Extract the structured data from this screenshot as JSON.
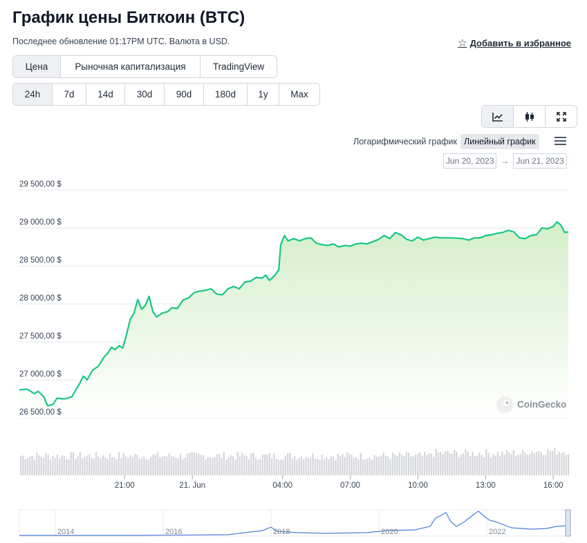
{
  "header": {
    "title": "График цены Биткоин (BTC)",
    "subtitle": "Последнее обновление 01:17PM UTC. Валюта в USD.",
    "favorite_label": "Добавить в избранное"
  },
  "tabs": [
    {
      "label": "Цена",
      "active": true
    },
    {
      "label": "Рыночная капитализация",
      "active": false
    },
    {
      "label": "TradingView",
      "active": false
    }
  ],
  "ranges": [
    {
      "label": "24h",
      "active": true
    },
    {
      "label": "7d",
      "active": false
    },
    {
      "label": "14d",
      "active": false
    },
    {
      "label": "30d",
      "active": false
    },
    {
      "label": "90d",
      "active": false
    },
    {
      "label": "180d",
      "active": false
    },
    {
      "label": "1y",
      "active": false
    },
    {
      "label": "Max",
      "active": false
    }
  ],
  "chart_type_icons": [
    "line-chart-icon",
    "candlestick-icon",
    "fullscreen-icon"
  ],
  "scale": {
    "log_label": "Логарифмический график",
    "linear_label": "Линейный график",
    "active": "linear"
  },
  "date_range": {
    "from": "Jun 20, 2023",
    "arrow": "→",
    "to": "Jun 21, 2023"
  },
  "watermark": "CoinGecko",
  "colors": {
    "line": "#16c784",
    "fill_top": "#d4eec9",
    "volume": "#d4d6da",
    "nav_line": "#4a7fd6"
  },
  "chart_data": {
    "type": "area",
    "ylim": [
      26500,
      29500
    ],
    "y_ticks": [
      {
        "value": 29500,
        "label": "29 500,00 $"
      },
      {
        "value": 29000,
        "label": "29 000,00 $"
      },
      {
        "value": 28500,
        "label": "28 500,00 $"
      },
      {
        "value": 28000,
        "label": "28 000,00 $"
      },
      {
        "value": 27500,
        "label": "27 500,00 $"
      },
      {
        "value": 27000,
        "label": "27 000,00 $"
      },
      {
        "value": 26500,
        "label": "26 500,00 $"
      }
    ],
    "x_range": [
      "Jun 20, 2023 16:20",
      "Jun 21, 2023 16:40"
    ],
    "x_ticks": [
      {
        "time": "Jun 20, 2023 21:00",
        "label": "21:00"
      },
      {
        "time": "Jun 21, 2023 00:00",
        "label": "21. Jun"
      },
      {
        "time": "Jun 21, 2023 04:00",
        "label": "04:00"
      },
      {
        "time": "Jun 21, 2023 07:00",
        "label": "07:00"
      },
      {
        "time": "Jun 21, 2023 10:00",
        "label": "10:00"
      },
      {
        "time": "Jun 21, 2023 13:00",
        "label": "13:00"
      },
      {
        "time": "Jun 21, 2023 16:00",
        "label": "16:00"
      }
    ],
    "series": [
      {
        "points": [
          [
            "Jun 20, 2023 16:20",
            26870
          ],
          [
            "Jun 20, 2023 16:40",
            26880
          ],
          [
            "Jun 20, 2023 17:00",
            26820
          ],
          [
            "Jun 20, 2023 17:10",
            26850
          ],
          [
            "Jun 20, 2023 17:25",
            26780
          ],
          [
            "Jun 20, 2023 17:35",
            26660
          ],
          [
            "Jun 20, 2023 17:50",
            26680
          ],
          [
            "Jun 20, 2023 18:00",
            26760
          ],
          [
            "Jun 20, 2023 18:20",
            26750
          ],
          [
            "Jun 20, 2023 18:40",
            26780
          ],
          [
            "Jun 20, 2023 19:00",
            26950
          ],
          [
            "Jun 20, 2023 19:10",
            27050
          ],
          [
            "Jun 20, 2023 19:20",
            27000
          ],
          [
            "Jun 20, 2023 19:35",
            27130
          ],
          [
            "Jun 20, 2023 19:50",
            27180
          ],
          [
            "Jun 20, 2023 20:05",
            27300
          ],
          [
            "Jun 20, 2023 20:15",
            27350
          ],
          [
            "Jun 20, 2023 20:25",
            27430
          ],
          [
            "Jun 20, 2023 20:35",
            27400
          ],
          [
            "Jun 20, 2023 20:45",
            27450
          ],
          [
            "Jun 20, 2023 20:55",
            27420
          ],
          [
            "Jun 20, 2023 21:05",
            27600
          ],
          [
            "Jun 20, 2023 21:15",
            27800
          ],
          [
            "Jun 20, 2023 21:25",
            27880
          ],
          [
            "Jun 20, 2023 21:35",
            28060
          ],
          [
            "Jun 20, 2023 21:45",
            27930
          ],
          [
            "Jun 20, 2023 21:55",
            27980
          ],
          [
            "Jun 20, 2023 22:05",
            28100
          ],
          [
            "Jun 20, 2023 22:15",
            27900
          ],
          [
            "Jun 20, 2023 22:25",
            27830
          ],
          [
            "Jun 20, 2023 22:40",
            27880
          ],
          [
            "Jun 20, 2023 22:55",
            27900
          ],
          [
            "Jun 20, 2023 23:05",
            27950
          ],
          [
            "Jun 20, 2023 23:20",
            27940
          ],
          [
            "Jun 20, 2023 23:35",
            28050
          ],
          [
            "Jun 20, 2023 23:50",
            28080
          ],
          [
            "Jun 21, 2023 00:05",
            28150
          ],
          [
            "Jun 21, 2023 00:20",
            28170
          ],
          [
            "Jun 21, 2023 00:35",
            28180
          ],
          [
            "Jun 21, 2023 00:50",
            28200
          ],
          [
            "Jun 21, 2023 01:05",
            28130
          ],
          [
            "Jun 21, 2023 01:20",
            28120
          ],
          [
            "Jun 21, 2023 01:35",
            28200
          ],
          [
            "Jun 21, 2023 01:50",
            28230
          ],
          [
            "Jun 21, 2023 02:05",
            28200
          ],
          [
            "Jun 21, 2023 02:20",
            28290
          ],
          [
            "Jun 21, 2023 02:35",
            28300
          ],
          [
            "Jun 21, 2023 02:50",
            28350
          ],
          [
            "Jun 21, 2023 03:05",
            28340
          ],
          [
            "Jun 21, 2023 03:15",
            28380
          ],
          [
            "Jun 21, 2023 03:25",
            28310
          ],
          [
            "Jun 21, 2023 03:40",
            28380
          ],
          [
            "Jun 21, 2023 03:50",
            28450
          ],
          [
            "Jun 21, 2023 03:55",
            28780
          ],
          [
            "Jun 21, 2023 04:05",
            28900
          ],
          [
            "Jun 21, 2023 04:15",
            28830
          ],
          [
            "Jun 21, 2023 04:30",
            28860
          ],
          [
            "Jun 21, 2023 04:45",
            28830
          ],
          [
            "Jun 21, 2023 05:00",
            28860
          ],
          [
            "Jun 21, 2023 05:15",
            28870
          ],
          [
            "Jun 21, 2023 05:30",
            28800
          ],
          [
            "Jun 21, 2023 05:45",
            28780
          ],
          [
            "Jun 21, 2023 06:00",
            28770
          ],
          [
            "Jun 21, 2023 06:15",
            28790
          ],
          [
            "Jun 21, 2023 06:30",
            28750
          ],
          [
            "Jun 21, 2023 06:45",
            28770
          ],
          [
            "Jun 21, 2023 07:00",
            28760
          ],
          [
            "Jun 21, 2023 07:15",
            28790
          ],
          [
            "Jun 21, 2023 07:30",
            28800
          ],
          [
            "Jun 21, 2023 07:45",
            28790
          ],
          [
            "Jun 21, 2023 08:00",
            28820
          ],
          [
            "Jun 21, 2023 08:15",
            28850
          ],
          [
            "Jun 21, 2023 08:30",
            28900
          ],
          [
            "Jun 21, 2023 08:45",
            28860
          ],
          [
            "Jun 21, 2023 09:00",
            28940
          ],
          [
            "Jun 21, 2023 09:15",
            28910
          ],
          [
            "Jun 21, 2023 09:30",
            28850
          ],
          [
            "Jun 21, 2023 09:45",
            28830
          ],
          [
            "Jun 21, 2023 10:00",
            28880
          ],
          [
            "Jun 21, 2023 10:15",
            28840
          ],
          [
            "Jun 21, 2023 10:30",
            28860
          ],
          [
            "Jun 21, 2023 10:45",
            28880
          ],
          [
            "Jun 21, 2023 11:00",
            28870
          ],
          [
            "Jun 21, 2023 11:30",
            28870
          ],
          [
            "Jun 21, 2023 12:00",
            28860
          ],
          [
            "Jun 21, 2023 12:15",
            28840
          ],
          [
            "Jun 21, 2023 12:30",
            28870
          ],
          [
            "Jun 21, 2023 12:45",
            28870
          ],
          [
            "Jun 21, 2023 13:00",
            28900
          ],
          [
            "Jun 21, 2023 13:15",
            28910
          ],
          [
            "Jun 21, 2023 13:30",
            28930
          ],
          [
            "Jun 21, 2023 13:45",
            28940
          ],
          [
            "Jun 21, 2023 14:00",
            28970
          ],
          [
            "Jun 21, 2023 14:15",
            28950
          ],
          [
            "Jun 21, 2023 14:30",
            28870
          ],
          [
            "Jun 21, 2023 14:45",
            28860
          ],
          [
            "Jun 21, 2023 15:00",
            28900
          ],
          [
            "Jun 21, 2023 15:15",
            28910
          ],
          [
            "Jun 21, 2023 15:30",
            29000
          ],
          [
            "Jun 21, 2023 15:45",
            28990
          ],
          [
            "Jun 21, 2023 16:00",
            29020
          ],
          [
            "Jun 21, 2023 16:10",
            29080
          ],
          [
            "Jun 21, 2023 16:20",
            29040
          ],
          [
            "Jun 21, 2023 16:30",
            28940
          ],
          [
            "Jun 21, 2023 16:40",
            28950
          ]
        ]
      }
    ],
    "navigator": {
      "x_ticks": [
        {
          "time": "2014",
          "label": "2014"
        },
        {
          "time": "2016",
          "label": "2016"
        },
        {
          "time": "2018",
          "label": "2018"
        },
        {
          "time": "2020",
          "label": "2020"
        },
        {
          "time": "2022",
          "label": "2022"
        }
      ]
    }
  }
}
